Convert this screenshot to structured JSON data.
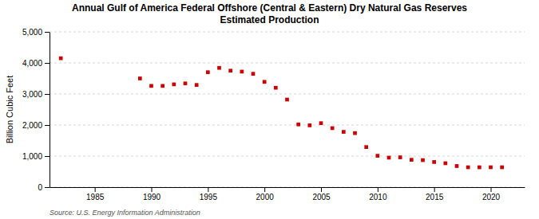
{
  "chart_data": {
    "type": "scatter",
    "title": "Annual Gulf of America Federal Offshore (Central & Eastern) Dry Natural Gas Reserves\nEstimated Production",
    "ylabel": "Billion Cubic Feet",
    "source": "Source: U.S. Energy Information Administration",
    "x": [
      1982,
      1989,
      1990,
      1991,
      1992,
      1993,
      1994,
      1995,
      1996,
      1997,
      1998,
      1999,
      2000,
      2001,
      2002,
      2003,
      2004,
      2005,
      2006,
      2007,
      2008,
      2009,
      2010,
      2011,
      2012,
      2013,
      2014,
      2015,
      2016,
      2017,
      2018,
      2019,
      2020,
      2021
    ],
    "values": [
      4150,
      3500,
      3260,
      3260,
      3310,
      3340,
      3290,
      3700,
      3840,
      3750,
      3720,
      3650,
      3390,
      3200,
      2820,
      2020,
      1990,
      2060,
      1900,
      1780,
      1740,
      1290,
      1010,
      950,
      960,
      880,
      870,
      810,
      770,
      680,
      640,
      640,
      640,
      640
    ],
    "color": "#cc0000",
    "marker": "square",
    "xlim": [
      1981,
      2023
    ],
    "xticks": [
      1985,
      1990,
      1995,
      2000,
      2005,
      2010,
      2015,
      2020
    ],
    "ylim": [
      0,
      5000
    ],
    "yticks": [
      0,
      {
        "value": 1000,
        "label": "1,000"
      },
      {
        "value": 2000,
        "label": "2,000"
      },
      {
        "value": 3000,
        "label": "3,000"
      },
      {
        "value": 4000,
        "label": "4,000"
      },
      {
        "value": 5000,
        "label": "5,000"
      }
    ],
    "grid": true
  }
}
